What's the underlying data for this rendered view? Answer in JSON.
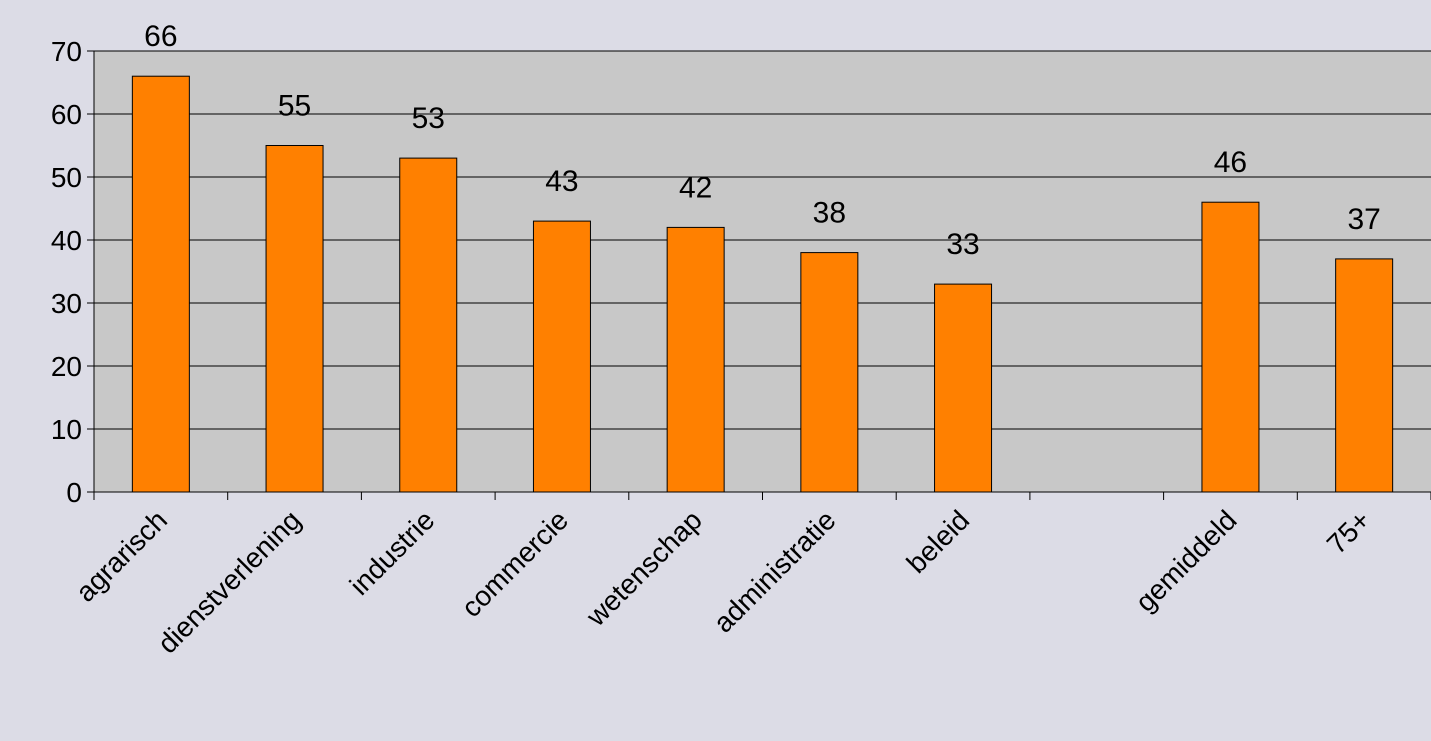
{
  "chart_data": {
    "type": "bar",
    "categories": [
      "agrarisch",
      "dienstverlening",
      "industrie",
      "commercie",
      "wetenschap",
      "administratie",
      "beleid",
      "",
      "gemiddeld",
      "75+"
    ],
    "values": [
      66,
      55,
      53,
      43,
      42,
      38,
      33,
      null,
      46,
      37
    ],
    "data_labels": [
      "66",
      "55",
      "53",
      "43",
      "42",
      "38",
      "33",
      "",
      "46",
      "37"
    ],
    "y_ticks": [
      "0",
      "10",
      "20",
      "30",
      "40",
      "50",
      "60",
      "70"
    ],
    "ylim": [
      0,
      70
    ],
    "grid": true,
    "legend": "none",
    "colors": {
      "bar": "#ff8000",
      "bar_border": "#000000",
      "plot_background": "#c8c8c8",
      "page_background": "#dcdce6",
      "grid": "#000000"
    }
  }
}
